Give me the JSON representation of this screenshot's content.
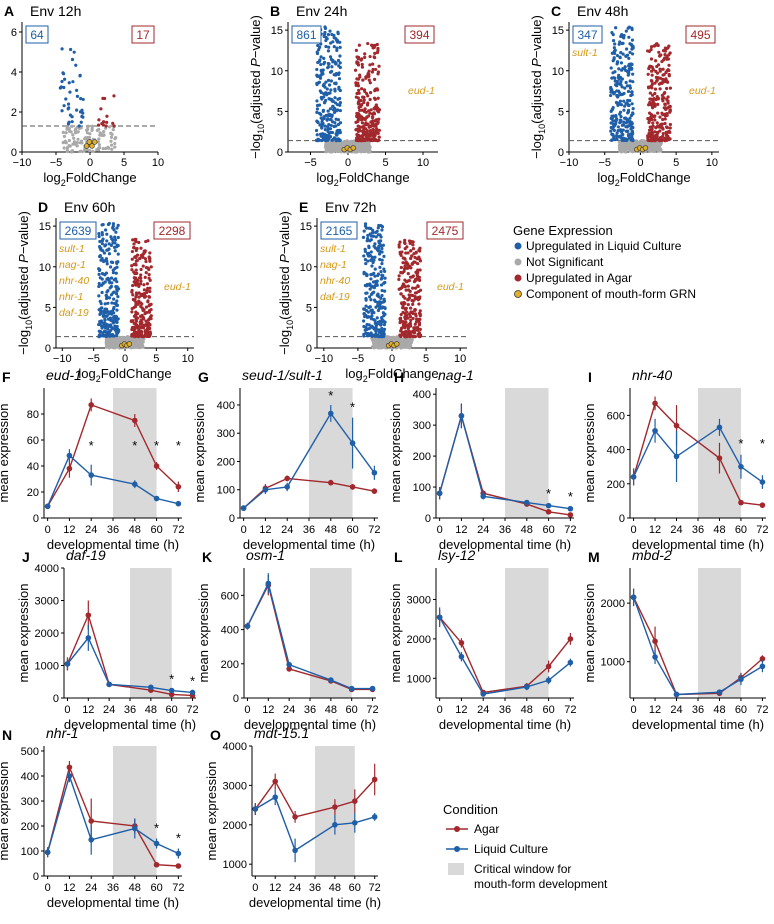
{
  "colors": {
    "up_liquid": "#1f5fa8",
    "not_sig": "#a9a9a9",
    "up_agar": "#a2282d",
    "grn": "#e0b02a",
    "agar_line": "#a2282d",
    "liquid_line": "#1f5fa8",
    "window": "#d9d9d9",
    "gene_label": "#d49a1a"
  },
  "volcano_axis_labels": {
    "xlabel_main": "log",
    "xlabel_sub": "2",
    "xlabel_tail": "FoldChange",
    "ylabel_pre": "−log",
    "ylabel_sub": "10",
    "ylabel_post": "(adjusted ",
    "ylabel_italic": "P",
    "ylabel_tail": "−value)"
  },
  "volcano_plots": [
    {
      "letter": "A",
      "title": "Env 12h",
      "n_down": "64",
      "n_up": "17",
      "x_ticks": [
        "−10",
        "−5",
        "0",
        "5",
        "10"
      ],
      "y_ticks": [
        "0",
        "2",
        "4",
        "6"
      ],
      "gene_labels_left": [],
      "gene_labels_right": []
    },
    {
      "letter": "B",
      "title": "Env 24h",
      "n_down": "861",
      "n_up": "394",
      "x_ticks": [
        "−5",
        "0",
        "5",
        "10"
      ],
      "y_ticks": [
        "0",
        "5",
        "10",
        "15"
      ],
      "gene_labels_left": [],
      "gene_labels_right": [
        "eud-1"
      ]
    },
    {
      "letter": "C",
      "title": "Env 48h",
      "n_down": "347",
      "n_up": "495",
      "x_ticks": [
        "−10",
        "−5",
        "0",
        "5",
        "10"
      ],
      "y_ticks": [
        "0",
        "5",
        "10",
        "15"
      ],
      "gene_labels_left": [
        "sult-1"
      ],
      "gene_labels_right": [
        "eud-1"
      ]
    },
    {
      "letter": "D",
      "title": "Env 60h",
      "n_down": "2639",
      "n_up": "2298",
      "x_ticks": [
        "−10",
        "−5",
        "0",
        "5",
        "10"
      ],
      "y_ticks": [
        "0",
        "5",
        "10",
        "15"
      ],
      "gene_labels_left": [
        "sult-1",
        "nag-1",
        "nhr-40",
        "nhr-1",
        "daf-19"
      ],
      "gene_labels_right": [
        "eud-1"
      ]
    },
    {
      "letter": "E",
      "title": "Env 72h",
      "n_down": "2165",
      "n_up": "2475",
      "x_ticks": [
        "−10",
        "−5",
        "0",
        "5",
        "10"
      ],
      "y_ticks": [
        "0",
        "5",
        "10",
        "15"
      ],
      "gene_labels_left": [
        "sult-1",
        "nag-1",
        "nhr-40",
        "daf-19"
      ],
      "gene_labels_right": [
        "eud-1"
      ]
    }
  ],
  "legend_gene_expression": {
    "title": "Gene Expression",
    "items": [
      "Upregulated in Liquid Culture",
      "Not Significant",
      "Upregulated in Agar",
      "Component of mouth-form GRN"
    ]
  },
  "legend_condition": {
    "title": "Condition",
    "agar": "Agar",
    "liquid": "Liquid Culture",
    "window_line1": "Critical window for",
    "window_line2": "mouth-form development"
  },
  "time_axis_labels": {
    "xlabel": "developmental time (h)",
    "ylabel": "mean expression"
  },
  "chart_data": [
    {
      "type": "line",
      "letter": "F",
      "title": "eud-1",
      "x": [
        0,
        12,
        24,
        48,
        60,
        72
      ],
      "x_ticks": [
        "0",
        "12",
        "24",
        "36",
        "48",
        "60",
        "72"
      ],
      "ylim": [
        0,
        100
      ],
      "y_ticks": [
        0,
        20,
        40,
        60,
        80
      ],
      "series": [
        {
          "name": "Agar",
          "values": [
            9,
            38,
            87,
            75,
            40,
            24
          ],
          "errors": [
            0,
            7,
            5,
            5,
            3,
            4
          ]
        },
        {
          "name": "Liquid Culture",
          "values": [
            9,
            48,
            33,
            26,
            15,
            11
          ],
          "errors": [
            0,
            5,
            8,
            3,
            2,
            2
          ]
        }
      ],
      "significant_x": [
        24,
        48,
        60,
        72
      ],
      "window": [
        36,
        60
      ]
    },
    {
      "type": "line",
      "letter": "G",
      "title": "seud-1/sult-1",
      "x": [
        0,
        12,
        24,
        48,
        60,
        72
      ],
      "x_ticks": [
        "0",
        "12",
        "24",
        "36",
        "48",
        "60",
        "72"
      ],
      "ylim": [
        0,
        460
      ],
      "y_ticks": [
        0,
        100,
        200,
        300,
        400
      ],
      "series": [
        {
          "name": "Agar",
          "values": [
            35,
            105,
            140,
            125,
            110,
            95
          ],
          "errors": [
            0,
            15,
            10,
            10,
            10,
            10
          ]
        },
        {
          "name": "Liquid Culture",
          "values": [
            35,
            100,
            110,
            370,
            265,
            160
          ],
          "errors": [
            0,
            15,
            15,
            30,
            90,
            25
          ]
        }
      ],
      "significant_x": [
        48,
        60
      ],
      "window": [
        36,
        60
      ]
    },
    {
      "type": "line",
      "letter": "H",
      "title": "nag-1",
      "x": [
        0,
        12,
        24,
        48,
        60,
        72
      ],
      "x_ticks": [
        "0",
        "12",
        "24",
        "36",
        "48",
        "60",
        "72"
      ],
      "ylim": [
        0,
        420
      ],
      "y_ticks": [
        0,
        100,
        200,
        300,
        400
      ],
      "series": [
        {
          "name": "Agar",
          "values": [
            80,
            330,
            80,
            45,
            20,
            10
          ],
          "errors": [
            20,
            40,
            10,
            5,
            5,
            3
          ]
        },
        {
          "name": "Liquid Culture",
          "values": [
            80,
            330,
            70,
            50,
            40,
            30
          ],
          "errors": [
            20,
            40,
            10,
            8,
            5,
            5
          ]
        }
      ],
      "significant_x": [
        60,
        72
      ],
      "window": [
        36,
        60
      ]
    },
    {
      "type": "line",
      "letter": "I",
      "title": "nhr-40",
      "x": [
        0,
        12,
        24,
        48,
        60,
        72
      ],
      "x_ticks": [
        "0",
        "12",
        "24",
        "36",
        "48",
        "60",
        "72"
      ],
      "ylim": [
        0,
        760
      ],
      "y_ticks": [
        0,
        200,
        400,
        600
      ],
      "series": [
        {
          "name": "Agar",
          "values": [
            240,
            670,
            540,
            350,
            90,
            75
          ],
          "errors": [
            50,
            40,
            120,
            90,
            10,
            15
          ]
        },
        {
          "name": "Liquid Culture",
          "values": [
            240,
            510,
            360,
            530,
            300,
            210
          ],
          "errors": [
            50,
            70,
            150,
            50,
            70,
            40
          ]
        }
      ],
      "significant_x": [
        60,
        72
      ],
      "window": [
        36,
        60
      ]
    },
    {
      "type": "line",
      "letter": "J",
      "title": "daf-19",
      "x": [
        0,
        12,
        24,
        48,
        60,
        72
      ],
      "x_ticks": [
        "0",
        "12",
        "24",
        "36",
        "48",
        "60",
        "72"
      ],
      "ylim": [
        0,
        4000
      ],
      "y_ticks": [
        0,
        1000,
        2000,
        3000,
        4000
      ],
      "series": [
        {
          "name": "Agar",
          "values": [
            1050,
            2550,
            420,
            240,
            110,
            80
          ],
          "errors": [
            200,
            450,
            50,
            40,
            20,
            15
          ]
        },
        {
          "name": "Liquid Culture",
          "values": [
            1050,
            1850,
            420,
            330,
            230,
            170
          ],
          "errors": [
            200,
            400,
            50,
            40,
            30,
            25
          ]
        }
      ],
      "significant_x": [
        60,
        72
      ],
      "window": [
        36,
        60
      ]
    },
    {
      "type": "line",
      "letter": "K",
      "title": "osm-1",
      "x": [
        0,
        12,
        24,
        48,
        60,
        72
      ],
      "x_ticks": [
        "0",
        "12",
        "24",
        "36",
        "48",
        "60",
        "72"
      ],
      "ylim": [
        0,
        760
      ],
      "y_ticks": [
        0,
        200,
        400,
        600
      ],
      "series": [
        {
          "name": "Agar",
          "values": [
            420,
            660,
            170,
            100,
            50,
            50
          ],
          "errors": [
            20,
            60,
            15,
            10,
            8,
            8
          ]
        },
        {
          "name": "Liquid Culture",
          "values": [
            420,
            670,
            195,
            105,
            55,
            55
          ],
          "errors": [
            20,
            60,
            15,
            10,
            8,
            8
          ]
        }
      ],
      "significant_x": [],
      "window": [
        36,
        60
      ]
    },
    {
      "type": "line",
      "letter": "L",
      "title": "lsy-12",
      "x": [
        0,
        12,
        24,
        48,
        60,
        72
      ],
      "x_ticks": [
        "0",
        "12",
        "24",
        "36",
        "48",
        "60",
        "72"
      ],
      "ylim": [
        500,
        3800
      ],
      "y_ticks": [
        1000,
        2000,
        3000
      ],
      "series": [
        {
          "name": "Agar",
          "values": [
            2550,
            1900,
            640,
            800,
            1300,
            2000
          ],
          "errors": [
            200,
            120,
            60,
            80,
            150,
            150
          ]
        },
        {
          "name": "Liquid Culture",
          "values": [
            2550,
            1550,
            600,
            780,
            950,
            1400
          ],
          "errors": [
            250,
            120,
            60,
            80,
            100,
            100
          ]
        }
      ],
      "significant_x": [],
      "window": [
        36,
        60
      ]
    },
    {
      "type": "line",
      "letter": "M",
      "title": "mbd-2",
      "x": [
        0,
        12,
        24,
        48,
        60,
        72
      ],
      "x_ticks": [
        "0",
        "12",
        "24",
        "36",
        "48",
        "60",
        "72"
      ],
      "ylim": [
        380,
        2600
      ],
      "y_ticks": [
        1000,
        2000
      ],
      "series": [
        {
          "name": "Agar",
          "values": [
            2100,
            1350,
            440,
            460,
            730,
            1050
          ],
          "errors": [
            150,
            250,
            20,
            30,
            80,
            60
          ]
        },
        {
          "name": "Liquid Culture",
          "values": [
            2100,
            1080,
            440,
            480,
            700,
            920
          ],
          "errors": [
            150,
            120,
            20,
            30,
            100,
            100
          ]
        }
      ],
      "significant_x": [],
      "window": [
        36,
        60
      ]
    },
    {
      "type": "line",
      "letter": "N",
      "title": "nhr-1",
      "x": [
        0,
        12,
        24,
        48,
        60,
        72
      ],
      "x_ticks": [
        "0",
        "12",
        "24",
        "36",
        "48",
        "60",
        "72"
      ],
      "ylim": [
        0,
        520
      ],
      "y_ticks": [
        0,
        100,
        200,
        300,
        400,
        500
      ],
      "series": [
        {
          "name": "Agar",
          "values": [
            95,
            435,
            220,
            200,
            45,
            40
          ],
          "errors": [
            20,
            25,
            90,
            30,
            10,
            10
          ]
        },
        {
          "name": "Liquid Culture",
          "values": [
            95,
            400,
            145,
            190,
            130,
            90
          ],
          "errors": [
            20,
            25,
            60,
            40,
            20,
            20
          ]
        }
      ],
      "significant_x": [
        60,
        72
      ],
      "window": [
        36,
        60
      ]
    },
    {
      "type": "line",
      "letter": "O",
      "title": "mdt-15.1",
      "x": [
        0,
        12,
        24,
        48,
        60,
        72
      ],
      "x_ticks": [
        "0",
        "12",
        "24",
        "36",
        "48",
        "60",
        "72"
      ],
      "ylim": [
        700,
        4000
      ],
      "y_ticks": [
        1000,
        2000,
        3000,
        4000
      ],
      "series": [
        {
          "name": "Agar",
          "values": [
            2400,
            3100,
            2200,
            2450,
            2600,
            3150
          ],
          "errors": [
            150,
            200,
            150,
            200,
            300,
            400
          ]
        },
        {
          "name": "Liquid Culture",
          "values": [
            2400,
            2700,
            1350,
            2000,
            2050,
            2200
          ],
          "errors": [
            150,
            200,
            300,
            250,
            250,
            100
          ]
        }
      ],
      "significant_x": [],
      "window": [
        36,
        60
      ]
    }
  ]
}
